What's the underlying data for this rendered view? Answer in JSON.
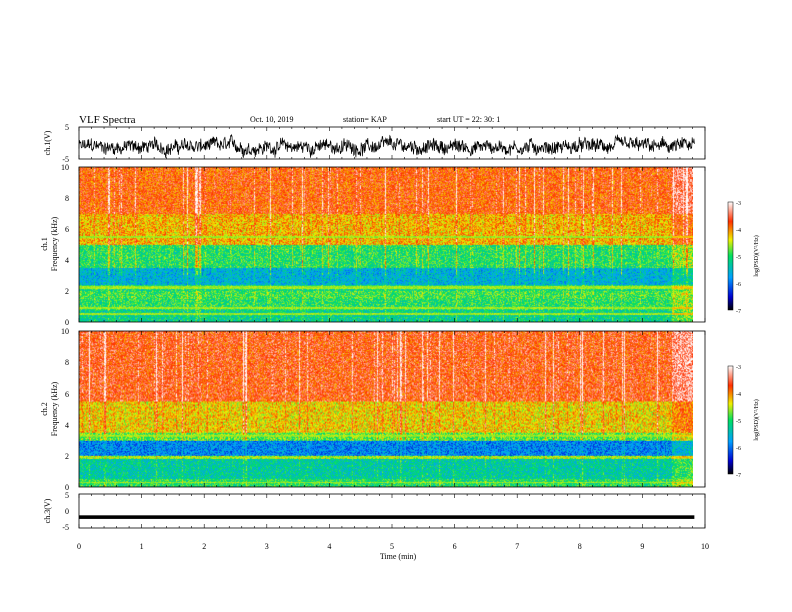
{
  "header": {
    "title": "VLF Spectra",
    "date": "Oct. 10, 2019",
    "station": "station= KAP",
    "start": "start UT = 22: 30: 1"
  },
  "chart_data": [
    {
      "id": "ch1-voltage",
      "type": "line",
      "ylabel": "ch.1(V)",
      "ylim": [
        -5,
        5
      ],
      "ytick_labels": [
        "5",
        "-5"
      ],
      "xlim": [
        0,
        9.83
      ],
      "baseline_v": -1.2,
      "trace_amplitude_v": 2.3
    },
    {
      "id": "ch1-spectrogram",
      "type": "heatmap",
      "ylabel": "ch.1",
      "ylabel2": "Frequency (kHz)",
      "ylim": [
        0,
        10
      ],
      "ytick_labels": [
        "0",
        "2",
        "4",
        "6",
        "8",
        "10"
      ],
      "xlim": [
        0,
        9.83
      ],
      "colorbar": {
        "label": "log(PSD)(V²/Hz)",
        "range": [
          -7,
          -3
        ],
        "tick_labels": [
          "-7",
          "-6",
          "-5",
          "-4",
          "-3"
        ]
      },
      "bands": [
        {
          "from_khz": 0.0,
          "to_khz": 0.8,
          "value": -5.2
        },
        {
          "from_khz": 0.8,
          "to_khz": 1.5,
          "value": -5.0
        },
        {
          "from_khz": 1.5,
          "to_khz": 2.0,
          "value": -4.9
        },
        {
          "from_khz": 2.0,
          "to_khz": 2.4,
          "value": -5.1
        },
        {
          "from_khz": 2.4,
          "to_khz": 3.5,
          "value": -5.6
        },
        {
          "from_khz": 3.5,
          "to_khz": 5.0,
          "value": -5.0
        },
        {
          "from_khz": 5.0,
          "to_khz": 7.0,
          "value": -4.2
        },
        {
          "from_khz": 7.0,
          "to_khz": 10.0,
          "value": -3.8
        }
      ],
      "lines_khz": [
        0.5,
        0.9,
        2.2,
        2.3,
        5.5
      ]
    },
    {
      "id": "ch2-spectrogram",
      "type": "heatmap",
      "ylabel": "ch.2",
      "ylabel2": "Frequency (kHz)",
      "ylim": [
        0,
        10
      ],
      "ytick_labels": [
        "0",
        "2",
        "4",
        "6",
        "8",
        "10"
      ],
      "xlim": [
        0,
        9.83
      ],
      "colorbar": {
        "label": "log(PSD)(V²/Hz)",
        "range": [
          -7,
          -3
        ],
        "tick_labels": [
          "-7",
          "-6",
          "-5",
          "-4",
          "-3"
        ]
      },
      "bands": [
        {
          "from_khz": 0.0,
          "to_khz": 0.5,
          "value": -5.0
        },
        {
          "from_khz": 0.5,
          "to_khz": 1.8,
          "value": -5.3
        },
        {
          "from_khz": 1.8,
          "to_khz": 2.0,
          "value": -4.6
        },
        {
          "from_khz": 2.0,
          "to_khz": 3.0,
          "value": -5.9
        },
        {
          "from_khz": 3.0,
          "to_khz": 3.5,
          "value": -4.8
        },
        {
          "from_khz": 3.5,
          "to_khz": 5.5,
          "value": -4.3
        },
        {
          "from_khz": 5.5,
          "to_khz": 10.0,
          "value": -3.7
        }
      ],
      "lines_khz": [
        0.3,
        1.9,
        3.3
      ]
    },
    {
      "id": "ch3-voltage",
      "type": "line",
      "ylabel": "ch.3(V)",
      "ylim": [
        -5,
        5
      ],
      "ytick_labels": [
        "5",
        "0",
        "-5"
      ],
      "xlim": [
        0,
        9.83
      ],
      "trace_level_v": -1.8,
      "xlabel": "Time (min)",
      "xtick_labels": [
        "0",
        "1",
        "2",
        "3",
        "4",
        "5",
        "6",
        "7",
        "8",
        "9",
        "10"
      ],
      "xaxis_range": [
        0,
        10
      ]
    }
  ]
}
